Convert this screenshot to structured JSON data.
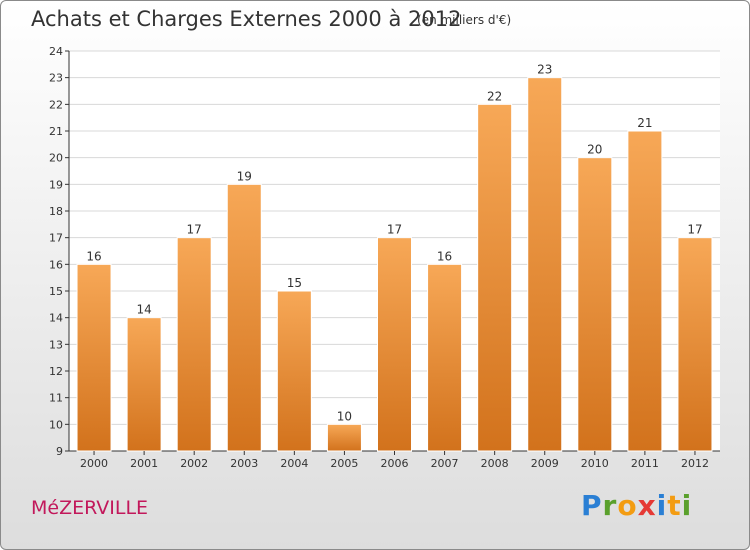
{
  "title": "Achats et Charges Externes 2000 à 2012",
  "unit": "(en milliers d'€)",
  "commune": "MéZERVILLE",
  "logo": {
    "letters": [
      "P",
      "r",
      "o",
      "x",
      "i",
      "t",
      "i"
    ],
    "colors": [
      "#2a7fd4",
      "#5aa02c",
      "#f39c12",
      "#e53935",
      "#2a7fd4",
      "#f39c12",
      "#5aa02c"
    ]
  },
  "colors": {
    "bar": "#e8892f",
    "bar_light": "#f7a857",
    "bar_dark": "#d2721c",
    "axis": "#333333",
    "grid": "#d8d8d8"
  },
  "chart_data": {
    "type": "bar",
    "title": "Achats et Charges Externes 2000 à 2012",
    "subtitle": "(en milliers d'€)",
    "categories": [
      "2000",
      "2001",
      "2002",
      "2003",
      "2004",
      "2005",
      "2006",
      "2007",
      "2008",
      "2009",
      "2010",
      "2011",
      "2012"
    ],
    "values": [
      16,
      14,
      17,
      19,
      15,
      10,
      17,
      16,
      22,
      23,
      20,
      21,
      17
    ],
    "ylim": [
      9,
      24
    ],
    "yticks": [
      9,
      10,
      11,
      12,
      13,
      14,
      15,
      16,
      17,
      18,
      19,
      20,
      21,
      22,
      23,
      24
    ],
    "grid": true,
    "xlabel": "",
    "ylabel": ""
  }
}
